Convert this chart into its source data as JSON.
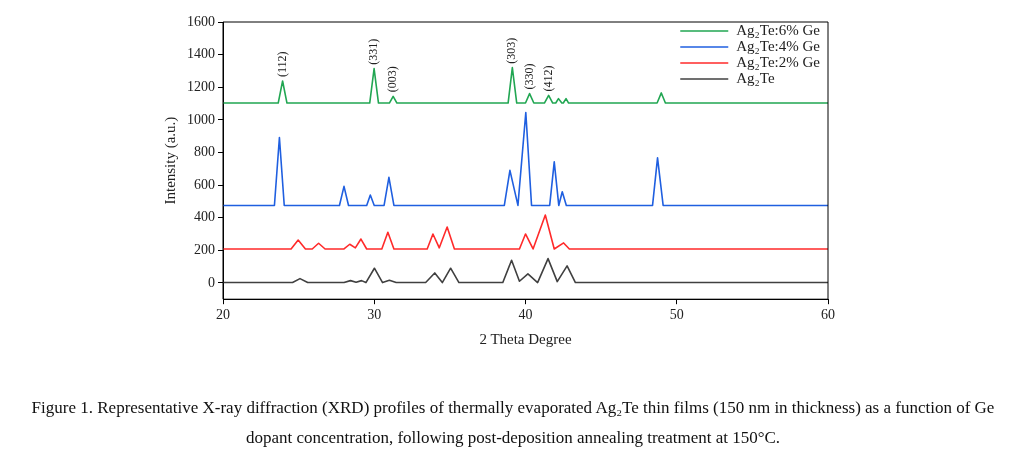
{
  "chart_data": {
    "type": "line",
    "xlabel": "2 Theta Degree",
    "ylabel": "Intensity (a.u.)",
    "xlim": [
      20,
      60
    ],
    "xticks": [
      20,
      30,
      40,
      50,
      60
    ],
    "ylim": [
      -100,
      1600
    ],
    "yticks": [
      0,
      200,
      400,
      600,
      800,
      1000,
      1200,
      1400,
      1600
    ],
    "grid": false,
    "legend": "top right",
    "series": [
      {
        "name": "Ag₂Te:6% Ge",
        "color": "#21a652",
        "x": [
          20,
          23.65,
          23.94,
          24.23,
          29.7,
          29.99,
          30.28,
          31.0,
          31.25,
          31.5,
          38.85,
          39.13,
          39.42,
          40.0,
          40.27,
          40.55,
          41.25,
          41.53,
          41.8,
          42.0,
          42.18,
          42.4,
          42.5,
          42.68,
          42.85,
          48.7,
          48.98,
          49.25,
          60
        ],
        "values": [
          1103,
          1103,
          1238,
          1103,
          1103,
          1314,
          1103,
          1103,
          1144,
          1103,
          1103,
          1320,
          1103,
          1103,
          1161,
          1103,
          1103,
          1150,
          1103,
          1103,
          1130,
          1103,
          1103,
          1130,
          1103,
          1103,
          1165,
          1103,
          1103
        ]
      },
      {
        "name": "Ag₂Te:4% Ge",
        "color": "#1f5fe0",
        "x": [
          20,
          23.4,
          23.73,
          24.05,
          27.7,
          28.0,
          28.3,
          29.5,
          29.74,
          30.0,
          30.65,
          30.97,
          31.3,
          38.6,
          38.97,
          39.5,
          40.02,
          40.4,
          41.6,
          41.9,
          42.2,
          42.43,
          42.7,
          48.4,
          48.73,
          49.1,
          60
        ],
        "values": [
          475,
          475,
          892,
          475,
          475,
          592,
          475,
          475,
          539,
          475,
          475,
          647,
          475,
          475,
          690,
          475,
          1045,
          475,
          475,
          742,
          475,
          559,
          475,
          475,
          767,
          475,
          475
        ]
      },
      {
        "name": "Ag₂Te:2% Ge",
        "color": "#ff2a2a",
        "x": [
          20,
          24.5,
          24.97,
          25.45,
          25.9,
          26.32,
          26.75,
          28.0,
          28.38,
          28.75,
          29.12,
          29.5,
          30.5,
          30.9,
          31.3,
          33.5,
          33.88,
          34.3,
          34.82,
          35.3,
          39.6,
          40.0,
          40.5,
          41.31,
          41.9,
          42.52,
          42.9,
          60
        ],
        "values": [
          208,
          208,
          263,
          208,
          208,
          243,
          208,
          208,
          237,
          215,
          269,
          208,
          208,
          310,
          208,
          208,
          300,
          215,
          343,
          208,
          208,
          300,
          208,
          416,
          208,
          245,
          208,
          208
        ]
      },
      {
        "name": "Ag₂Te",
        "color": "#404040",
        "x": [
          20,
          24.6,
          25.09,
          25.6,
          28.0,
          28.43,
          28.8,
          29.16,
          29.45,
          30.01,
          30.55,
          31.0,
          31.45,
          33.4,
          34.0,
          34.5,
          35.05,
          35.6,
          38.5,
          39.08,
          39.6,
          40.16,
          40.8,
          41.49,
          42.1,
          42.75,
          43.3,
          60
        ],
        "values": [
          2,
          2,
          26,
          2,
          2,
          14,
          4,
          14,
          2,
          90,
          2,
          16,
          2,
          2,
          61,
          2,
          90,
          2,
          2,
          139,
          10,
          55,
          2,
          149,
          8,
          104,
          2,
          2
        ]
      }
    ],
    "annotations": [
      {
        "text": "(112)",
        "x": 23.94,
        "y": 1238
      },
      {
        "text": "(331)",
        "x": 29.99,
        "y": 1314
      },
      {
        "text": "(003)",
        "x": 31.25,
        "y": 1144
      },
      {
        "text": "(303)",
        "x": 39.13,
        "y": 1320
      },
      {
        "text": "(330)",
        "x": 40.27,
        "y": 1161
      },
      {
        "text": "(412)",
        "x": 41.53,
        "y": 1150
      },
      "Figure 1. Representative X-ray diffraction (XRD) profiles of thermally evaporated Ag₂Te thin films (150 nm in thickness) as a function of Ge dopant concentration, following post-deposition annealing treatment at 150°C."
    ]
  }
}
